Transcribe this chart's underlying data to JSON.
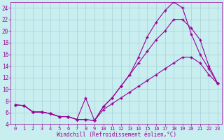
{
  "xlabel": "Windchill (Refroidissement éolien,°C)",
  "bg_color": "#c8eef0",
  "line_color": "#990099",
  "xlim": [
    -0.5,
    23.5
  ],
  "ylim": [
    4,
    25
  ],
  "yticks": [
    4,
    6,
    8,
    10,
    12,
    14,
    16,
    18,
    20,
    22,
    24
  ],
  "xticks": [
    0,
    1,
    2,
    3,
    4,
    5,
    6,
    7,
    8,
    9,
    10,
    11,
    12,
    13,
    14,
    15,
    16,
    17,
    18,
    19,
    20,
    21,
    22,
    23
  ],
  "line1_x": [
    0,
    1,
    2,
    3,
    4,
    5,
    6,
    7,
    8,
    9,
    10,
    11,
    12,
    13,
    14,
    15,
    16,
    17,
    18,
    19,
    20,
    21,
    22,
    23
  ],
  "line1_y": [
    7.3,
    7.2,
    6.1,
    6.1,
    5.8,
    5.3,
    5.3,
    4.8,
    4.8,
    4.6,
    7.0,
    8.5,
    10.5,
    12.5,
    15.5,
    19.0,
    21.5,
    23.5,
    25.0,
    24.0,
    19.5,
    16.0,
    13.5,
    11.0
  ],
  "line2_x": [
    0,
    1,
    2,
    3,
    4,
    5,
    6,
    7,
    8,
    9,
    10,
    11,
    12,
    13,
    14,
    15,
    16,
    17,
    18,
    19,
    20,
    21,
    22,
    23
  ],
  "line2_y": [
    7.3,
    7.2,
    6.1,
    6.1,
    5.8,
    5.3,
    5.3,
    4.8,
    8.5,
    4.6,
    7.0,
    8.5,
    10.5,
    12.5,
    14.5,
    16.5,
    18.5,
    20.0,
    22.0,
    22.0,
    20.5,
    18.5,
    14.0,
    11.0
  ],
  "line3_x": [
    0,
    1,
    2,
    3,
    4,
    5,
    6,
    7,
    8,
    9,
    10,
    11,
    12,
    13,
    14,
    15,
    16,
    17,
    18,
    19,
    20,
    21,
    22,
    23
  ],
  "line3_y": [
    7.3,
    7.2,
    6.1,
    6.1,
    5.8,
    5.3,
    5.3,
    4.8,
    4.8,
    4.6,
    6.5,
    7.5,
    8.5,
    9.5,
    10.5,
    11.5,
    12.5,
    13.5,
    14.5,
    15.5,
    15.5,
    14.5,
    12.5,
    11.0
  ]
}
